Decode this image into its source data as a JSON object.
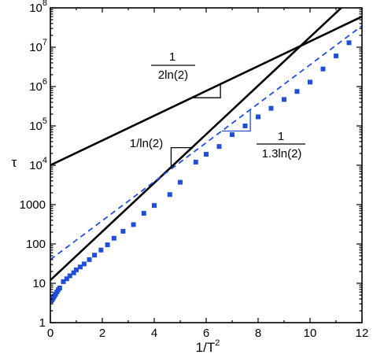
{
  "chart_data": {
    "type": "scatter",
    "xlabel": "1/T",
    "xlabel_sup": "2",
    "ylabel": "τ",
    "xlim": [
      0,
      12
    ],
    "ylim": [
      1,
      100000000
    ],
    "y_scale": "log",
    "x_ticks": [
      0,
      2,
      4,
      6,
      8,
      10,
      12
    ],
    "x_tick_labels": [
      "0",
      "2",
      "4",
      "6",
      "8",
      "10",
      "12"
    ],
    "y_ticks": [
      1,
      10,
      100,
      1000,
      10000,
      100000,
      1000000,
      10000000,
      100000000
    ],
    "y_tick_labels": [
      {
        "base": "1",
        "exp": ""
      },
      {
        "base": "10",
        "exp": ""
      },
      {
        "base": "100",
        "exp": ""
      },
      {
        "base": "1000",
        "exp": ""
      },
      {
        "base": "10",
        "exp": "4"
      },
      {
        "base": "10",
        "exp": "5"
      },
      {
        "base": "10",
        "exp": "6"
      },
      {
        "base": "10",
        "exp": "7"
      },
      {
        "base": "10",
        "exp": "8"
      }
    ],
    "markers": {
      "color": "#1f4fd8",
      "points": [
        [
          0.03,
          3.6
        ],
        [
          0.06,
          3.8
        ],
        [
          0.09,
          4.1
        ],
        [
          0.12,
          4.4
        ],
        [
          0.16,
          4.8
        ],
        [
          0.2,
          5.3
        ],
        [
          0.25,
          6.0
        ],
        [
          0.3,
          6.8
        ],
        [
          0.36,
          7.6
        ],
        [
          0.5,
          11
        ],
        [
          0.63,
          13
        ],
        [
          0.75,
          15.5
        ],
        [
          0.9,
          18.5
        ],
        [
          1.0,
          22
        ],
        [
          1.15,
          26
        ],
        [
          1.3,
          31
        ],
        [
          1.5,
          40
        ],
        [
          1.7,
          52
        ],
        [
          1.95,
          70
        ],
        [
          2.2,
          95
        ],
        [
          2.45,
          140
        ],
        [
          2.8,
          210
        ],
        [
          3.2,
          310
        ],
        [
          3.6,
          600
        ],
        [
          4.0,
          950
        ],
        [
          4.6,
          1800
        ],
        [
          5.0,
          3700
        ],
        [
          5.6,
          12000
        ],
        [
          6.0,
          19000
        ],
        [
          6.5,
          30000
        ],
        [
          7.0,
          60000
        ],
        [
          7.5,
          100000
        ],
        [
          8.0,
          170000
        ],
        [
          8.5,
          280000
        ],
        [
          9.0,
          470000
        ],
        [
          9.5,
          750000
        ],
        [
          10.0,
          1300000
        ],
        [
          10.5,
          2800000
        ],
        [
          11.0,
          6000000
        ],
        [
          11.5,
          13000000
        ]
      ]
    },
    "lines": [
      {
        "style": "solid",
        "color": "#000000",
        "points": [
          [
            0,
            12
          ],
          [
            11.2,
            100000000
          ]
        ]
      },
      {
        "style": "solid",
        "color": "#000000",
        "points": [
          [
            0,
            10000
          ],
          [
            12,
            60000000
          ]
        ]
      },
      {
        "style": "dashed",
        "color": "#1f4fd8",
        "points": [
          [
            0,
            40
          ],
          [
            12,
            35000000
          ]
        ]
      }
    ],
    "annotations": [
      {
        "id": "frac-half",
        "numerator": "1",
        "denominator": "2ln(2)",
        "color": "#000000"
      },
      {
        "id": "frac-one",
        "text": "1/ln(2)",
        "color": "#000000"
      },
      {
        "id": "frac-blue",
        "numerator": "1",
        "denominator": "1.3ln(2)",
        "color": "#1f4fd8"
      }
    ],
    "grid": false,
    "legend": "none"
  }
}
